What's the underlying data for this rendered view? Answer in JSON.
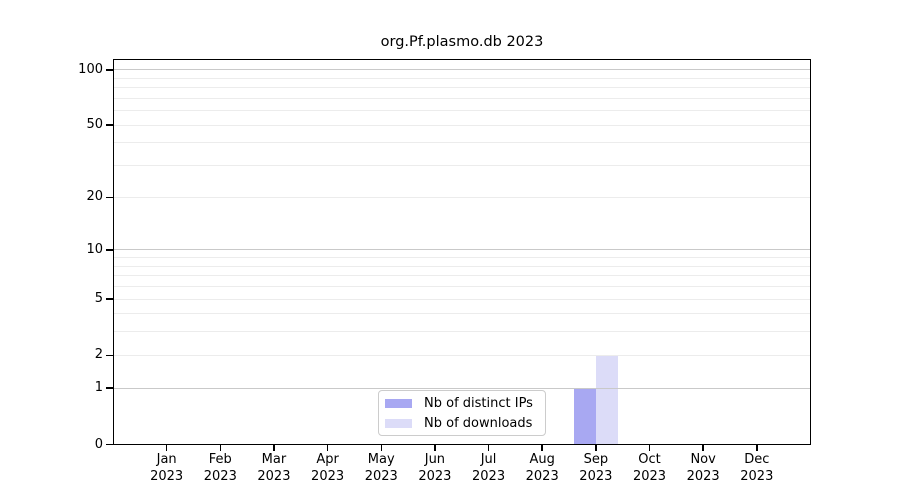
{
  "chart_data": {
    "type": "bar",
    "title": "org.Pf.plasmo.db 2023",
    "categories": [
      "Jan",
      "Feb",
      "Mar",
      "Apr",
      "May",
      "Jun",
      "Jul",
      "Aug",
      "Sep",
      "Oct",
      "Nov",
      "Dec"
    ],
    "x_year_label": "2023",
    "series": [
      {
        "name": "Nb of distinct IPs",
        "color": "#a8a8f2",
        "values": [
          0,
          0,
          0,
          0,
          0,
          0,
          0,
          0,
          1,
          0,
          0,
          0
        ]
      },
      {
        "name": "Nb of downloads",
        "color": "#dcdcf8",
        "values": [
          0,
          0,
          0,
          0,
          0,
          0,
          0,
          0,
          2,
          0,
          0,
          0
        ]
      }
    ],
    "yticks": [
      0,
      1,
      2,
      5,
      10,
      20,
      50,
      100
    ],
    "yscale": "log1p",
    "ylim": [
      0,
      115
    ],
    "xlabel": "",
    "ylabel": "",
    "grid": "horizontal",
    "legend_position": "lower center",
    "colors": {
      "grid_major": "#c9c9c9",
      "grid_minor": "#ececec",
      "axis": "#000000",
      "text": "#000000",
      "background": "#ffffff"
    }
  }
}
